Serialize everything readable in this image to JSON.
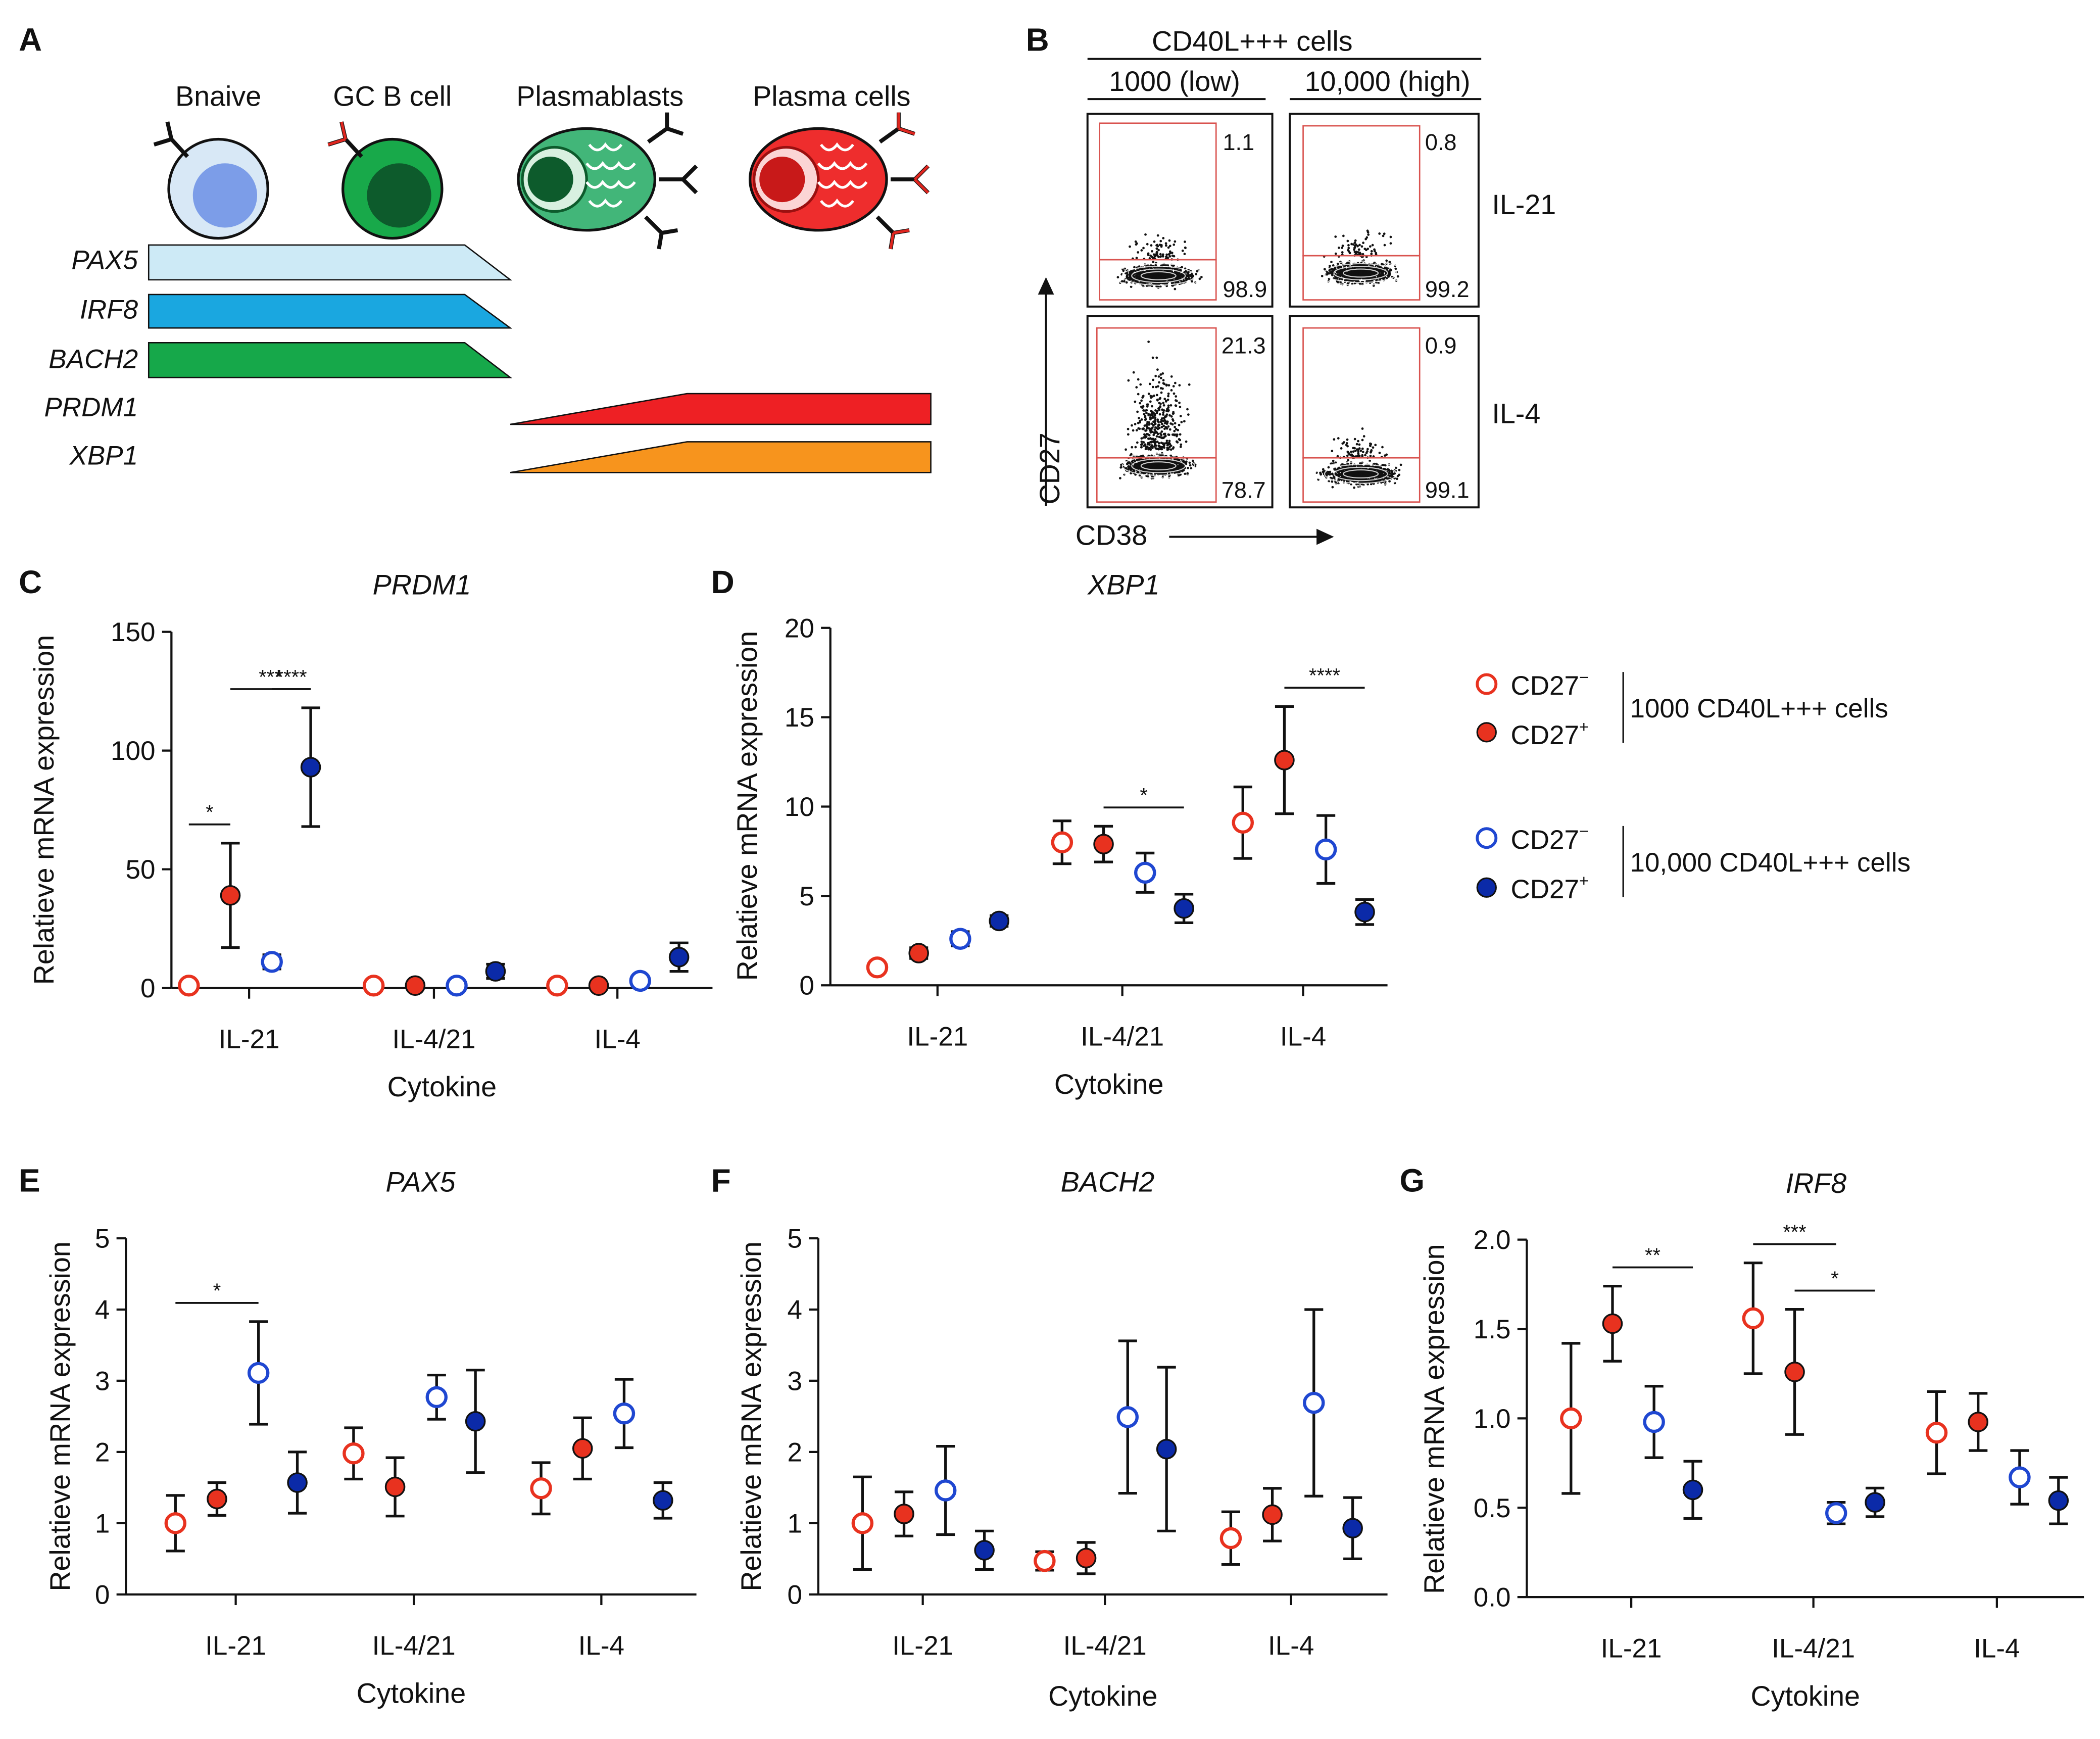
{
  "panelA": {
    "label": "A",
    "cells": [
      "Bnaive",
      "GC B cell",
      "Plasmablasts",
      "Plasma cells"
    ],
    "genes": [
      {
        "name": "PAX5",
        "color": "#cdeaf6"
      },
      {
        "name": "IRF8",
        "color": "#1aa7e0"
      },
      {
        "name": "BACH2",
        "color": "#16a84a"
      },
      {
        "name": "PRDM1",
        "color": "#ee2024"
      },
      {
        "name": "XBP1",
        "color": "#f7941d"
      }
    ]
  },
  "panelB": {
    "label": "B",
    "header": "CD40L+++ cells",
    "col_low": "1000 (low)",
    "col_high": "10,000 (high)",
    "row_il21": "IL-21",
    "row_il4": "IL-4",
    "ylabel": "CD27",
    "xlabel": "CD38",
    "gates": [
      {
        "top": "1.1",
        "bottom": "98.9",
        "top_frac": 0.011
      },
      {
        "top": "0.8",
        "bottom": "99.2",
        "top_frac": 0.008
      },
      {
        "top": "21.3",
        "bottom": "78.7",
        "top_frac": 0.213
      },
      {
        "top": "0.9",
        "bottom": "99.1",
        "top_frac": 0.009
      }
    ]
  },
  "legend": {
    "cd27neg": "CD27",
    "cd27neg_sup": "−",
    "cd27pos": "CD27",
    "cd27pos_sup": "+",
    "group_low": "1000 CD40L+++ cells",
    "group_high": "10,000 CD40L+++ cells",
    "colors": {
      "low": "#e8321f",
      "high": "#1f47d1",
      "high_dark": "#0b2aa8"
    }
  },
  "chart_data": [
    {
      "panel": "C",
      "type": "scatter",
      "title": "PRDM1",
      "xlabel": "Cytokine",
      "ylabel": "Relatieve mRNA expression",
      "categories": [
        "IL-21",
        "IL-4/21",
        "IL-4"
      ],
      "ylim": [
        0,
        150
      ],
      "yticks": [
        "0",
        "50",
        "100",
        "150"
      ],
      "series": [
        {
          "name": "CD27− 1000",
          "values": [
            1,
            1,
            1
          ],
          "errors": [
            0,
            0,
            0
          ]
        },
        {
          "name": "CD27+ 1000",
          "values": [
            39,
            1,
            1
          ],
          "errors": [
            22,
            0,
            0
          ]
        },
        {
          "name": "CD27− 10,000",
          "values": [
            11,
            1,
            3
          ],
          "errors": [
            3,
            0,
            0
          ]
        },
        {
          "name": "CD27+ 10,000",
          "values": [
            93,
            7,
            13
          ],
          "errors": [
            25,
            3,
            6
          ]
        }
      ],
      "significance": [
        {
          "from": [
            0,
            0
          ],
          "to": [
            0,
            1
          ],
          "label": "*"
        },
        {
          "from": [
            0,
            1
          ],
          "to": [
            0,
            3
          ],
          "label": "***"
        },
        {
          "from": [
            0,
            2
          ],
          "to": [
            0,
            3
          ],
          "label": "****"
        }
      ]
    },
    {
      "panel": "D",
      "type": "scatter",
      "title": "XBP1",
      "xlabel": "Cytokine",
      "ylabel": "Relatieve mRNA expression",
      "categories": [
        "IL-21",
        "IL-4/21",
        "IL-4"
      ],
      "ylim": [
        0,
        20
      ],
      "yticks": [
        "0",
        "5",
        "10",
        "15",
        "20"
      ],
      "series": [
        {
          "name": "CD27− 1000",
          "values": [
            1.0,
            8.0,
            9.1
          ],
          "errors": [
            0,
            1.2,
            2.0
          ]
        },
        {
          "name": "CD27+ 1000",
          "values": [
            1.8,
            7.9,
            12.6
          ],
          "errors": [
            0.3,
            1.0,
            3.0
          ]
        },
        {
          "name": "CD27− 10,000",
          "values": [
            2.6,
            6.3,
            7.6
          ],
          "errors": [
            0.4,
            1.1,
            1.9
          ]
        },
        {
          "name": "CD27+ 10,000",
          "values": [
            3.6,
            4.3,
            4.1
          ],
          "errors": [
            0.3,
            0.8,
            0.7
          ]
        }
      ],
      "significance": [
        {
          "from": [
            1,
            1
          ],
          "to": [
            1,
            3
          ],
          "label": "*"
        },
        {
          "from": [
            2,
            1
          ],
          "to": [
            2,
            3
          ],
          "label": "****"
        }
      ]
    },
    {
      "panel": "E",
      "type": "scatter",
      "title": "PAX5",
      "xlabel": "Cytokine",
      "ylabel": "Relatieve mRNA expression",
      "categories": [
        "IL-21",
        "IL-4/21",
        "IL-4"
      ],
      "ylim": [
        0,
        5
      ],
      "yticks": [
        "0",
        "1",
        "2",
        "3",
        "4",
        "5"
      ],
      "series": [
        {
          "name": "CD27− 1000",
          "values": [
            1.0,
            1.98,
            1.49
          ],
          "errors": [
            0.39,
            0.36,
            0.36
          ]
        },
        {
          "name": "CD27+ 1000",
          "values": [
            1.34,
            1.51,
            2.05
          ],
          "errors": [
            0.23,
            0.41,
            0.43
          ]
        },
        {
          "name": "CD27− 10,000",
          "values": [
            3.11,
            2.77,
            2.54
          ],
          "errors": [
            0.72,
            0.31,
            0.48
          ]
        },
        {
          "name": "CD27+ 10,000",
          "values": [
            1.57,
            2.43,
            1.32
          ],
          "errors": [
            0.43,
            0.72,
            0.25
          ]
        }
      ],
      "significance": [
        {
          "from": [
            0,
            0
          ],
          "to": [
            0,
            2
          ],
          "label": "*"
        }
      ]
    },
    {
      "panel": "F",
      "type": "scatter",
      "title": "BACH2",
      "xlabel": "Cytokine",
      "ylabel": "Relatieve mRNA expression",
      "categories": [
        "IL-21",
        "IL-4/21",
        "IL-4"
      ],
      "ylim": [
        0,
        5
      ],
      "yticks": [
        "0",
        "1",
        "2",
        "3",
        "4",
        "5"
      ],
      "series": [
        {
          "name": "CD27− 1000",
          "values": [
            1.0,
            0.47,
            0.79
          ],
          "errors": [
            0.65,
            0.13,
            0.37
          ]
        },
        {
          "name": "CD27+ 1000",
          "values": [
            1.13,
            0.51,
            1.12
          ],
          "errors": [
            0.31,
            0.22,
            0.37
          ]
        },
        {
          "name": "CD27− 10,000",
          "values": [
            1.46,
            2.49,
            2.69
          ],
          "errors": [
            0.62,
            1.07,
            1.31
          ]
        },
        {
          "name": "CD27+ 10,000",
          "values": [
            0.62,
            2.04,
            0.93
          ],
          "errors": [
            0.27,
            1.15,
            0.43
          ]
        }
      ],
      "significance": []
    },
    {
      "panel": "G",
      "type": "scatter",
      "title": "IRF8",
      "xlabel": "Cytokine",
      "ylabel": "Relatieve mRNA expression",
      "categories": [
        "IL-21",
        "IL-4/21",
        "IL-4"
      ],
      "ylim": [
        0,
        2.0
      ],
      "yticks": [
        "0.0",
        "0.5",
        "1.0",
        "1.5",
        "2.0"
      ],
      "series": [
        {
          "name": "CD27− 1000",
          "values": [
            1.0,
            1.56,
            0.92
          ],
          "errors": [
            0.42,
            0.31,
            0.23
          ]
        },
        {
          "name": "CD27+ 1000",
          "values": [
            1.53,
            1.26,
            0.98
          ],
          "errors": [
            0.21,
            0.35,
            0.16
          ]
        },
        {
          "name": "CD27− 10,000",
          "values": [
            0.98,
            0.47,
            0.67
          ],
          "errors": [
            0.2,
            0.06,
            0.15
          ]
        },
        {
          "name": "CD27+ 10,000",
          "values": [
            0.6,
            0.53,
            0.54
          ],
          "errors": [
            0.16,
            0.08,
            0.13
          ]
        }
      ],
      "significance": [
        {
          "from": [
            0,
            1
          ],
          "to": [
            0,
            3
          ],
          "label": "**"
        },
        {
          "from": [
            1,
            0
          ],
          "to": [
            1,
            2
          ],
          "label": "***"
        },
        {
          "from": [
            1,
            1
          ],
          "to": [
            1,
            3
          ],
          "label": "*"
        }
      ]
    }
  ]
}
